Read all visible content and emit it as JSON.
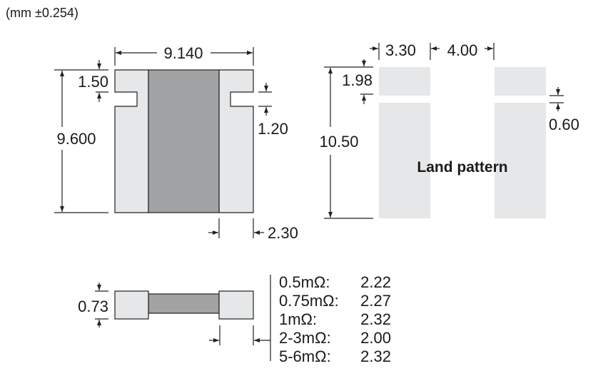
{
  "units_note": "(mm ±0.254)",
  "top_view": {
    "width": "9.140",
    "height": "9.600",
    "notch_offset": "1.50",
    "notch_height": "1.20",
    "terminal_width": "2.30"
  },
  "land_pattern": {
    "label": "Land pattern",
    "pad_width": "3.30",
    "pad_gap": "4.00",
    "top_pad_height": "1.98",
    "total_height": "10.50",
    "slot_gap": "0.60"
  },
  "side_view": {
    "thickness": "0.73",
    "terminal_table": [
      {
        "resistance": "0.5mΩ:",
        "value": "2.22"
      },
      {
        "resistance": "0.75mΩ:",
        "value": "2.27"
      },
      {
        "resistance": "1mΩ:",
        "value": "2.32"
      },
      {
        "resistance": "2-3mΩ:",
        "value": "2.00"
      },
      {
        "resistance": "5-6mΩ:",
        "value": "2.32"
      }
    ]
  },
  "colors": {
    "terminal": "#e6e7e8",
    "body": "#a2a3a5",
    "pad": "#e6e7e8"
  }
}
